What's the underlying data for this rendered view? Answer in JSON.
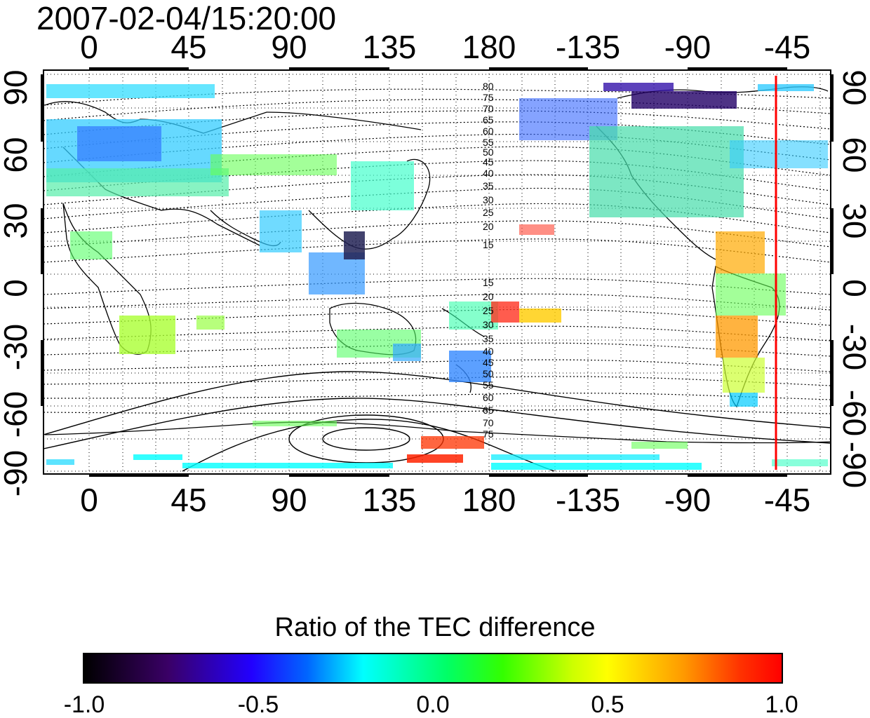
{
  "timestamp": "2007-02-04/15:20:00",
  "map": {
    "x_ticks": [
      "0",
      "45",
      "90",
      "135",
      "180",
      "-135",
      "-90",
      "-45"
    ],
    "y_ticks_left": [
      "90",
      "60",
      "30",
      "0",
      "-30",
      "-60",
      "-90"
    ],
    "y_ticks_right": [
      "90",
      "60",
      "30",
      "0",
      "-30",
      "-60",
      "-90"
    ],
    "contour_labels_north": [
      "80",
      "75",
      "70",
      "65",
      "60",
      "55",
      "50",
      "45",
      "40",
      "35",
      "30",
      "25",
      "20",
      "15"
    ],
    "contour_labels_south": [
      "15",
      "20",
      "25",
      "30",
      "35",
      "40",
      "45",
      "50",
      "55",
      "60",
      "65",
      "70",
      "75"
    ],
    "terminator_color": "#ff0000",
    "terminator_longitude": -50
  },
  "colorbar": {
    "title": "Ratio of the TEC difference",
    "tick_labels": [
      "-1.0",
      "-0.5",
      "0.0",
      "0.5",
      "1.0"
    ],
    "min": -1.0,
    "max": 1.0
  }
}
